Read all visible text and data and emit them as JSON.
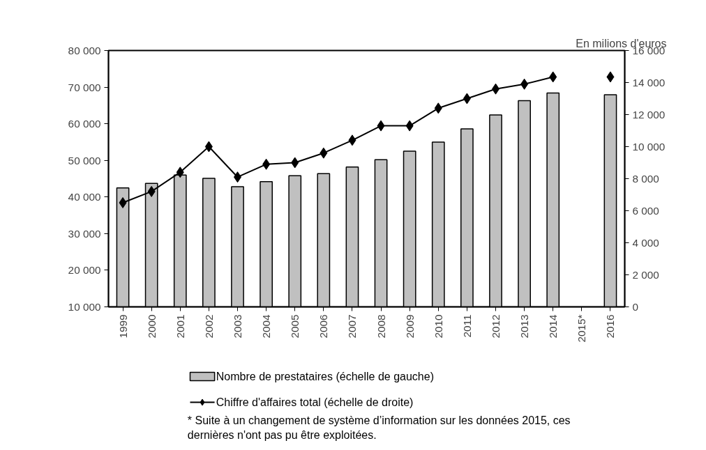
{
  "chart_data": {
    "type": "bar",
    "y2label": "En milions d'euros",
    "categories": [
      "1999",
      "2000",
      "2001",
      "2002",
      "2003",
      "2004",
      "2005",
      "2006",
      "2007",
      "2008",
      "2009",
      "2010",
      "2011",
      "2012",
      "2013",
      "2014",
      "2015*",
      "2016"
    ],
    "series": [
      {
        "name": "Nombre de prestataires (échelle de gauche)",
        "color": "#c0c0c0",
        "values": [
          42500,
          43700,
          46000,
          45100,
          42800,
          44200,
          45800,
          46400,
          48200,
          50200,
          52500,
          55000,
          58600,
          62400,
          66300,
          68400,
          null,
          67900
        ]
      },
      {
        "name": "Chiffre d'affaires total (échelle de droite)",
        "type": "line",
        "axis": "y2",
        "color": "#000000",
        "marker": "diamond",
        "values": [
          6500,
          7200,
          8400,
          10000,
          8100,
          8900,
          9000,
          9600,
          10400,
          11300,
          11300,
          12400,
          13000,
          13600,
          13900,
          14350,
          null,
          14350
        ]
      }
    ],
    "ylim": [
      10000,
      80000
    ],
    "yticks": [
      {
        "value": 10000,
        "label": "10 000"
      },
      {
        "value": 20000,
        "label": "20 000"
      },
      {
        "value": 30000,
        "label": "30 000"
      },
      {
        "value": 40000,
        "label": "40 000"
      },
      {
        "value": 50000,
        "label": "50 000"
      },
      {
        "value": 60000,
        "label": "60 000"
      },
      {
        "value": 70000,
        "label": "70 000"
      },
      {
        "value": 80000,
        "label": "80 000"
      }
    ],
    "y2lim": [
      0,
      16000
    ],
    "y2ticks": [
      0,
      {
        "value": 2000,
        "label": "2 000"
      },
      {
        "value": 4000,
        "label": "4 000"
      },
      {
        "value": 6000,
        "label": "6 000"
      },
      {
        "value": 8000,
        "label": "8 000"
      },
      {
        "value": 10000,
        "label": "10 000"
      },
      {
        "value": 12000,
        "label": "12 000"
      },
      {
        "value": 14000,
        "label": "14 000"
      },
      {
        "value": 16000,
        "label": "16 000"
      }
    ],
    "grid": false,
    "legend": "bottom",
    "annotations": [
      "* Suite à un changement de système d’information sur les données 2015, ces\ndernières n'ont pas pu être exploitées."
    ]
  }
}
